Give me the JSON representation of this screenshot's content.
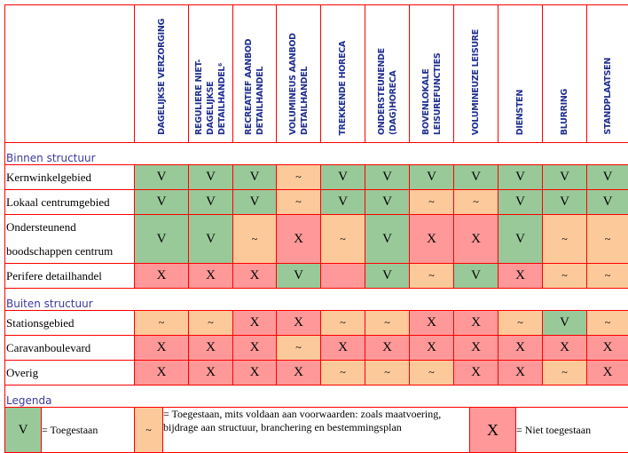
{
  "columns": [
    "DAGELIJKSE VERZORGING",
    "REGULIERE NIET-DAGELIJKSE DETAILHANDEL⁶",
    "RECREATIEF AANBOD DETAILHANDEL",
    "VOLUMINEUS AANBOD DETAILHANDEL",
    "TREKKENDE HORECA",
    "ONDERSTEUNENDE (DAG)HORECA",
    "BOVENLOKALE LEISUREFUNCTIES",
    "VOLUMINEUZE LEISURE",
    "DIENSTEN",
    "BLURRING",
    "STANDPLAATSEN"
  ],
  "colors": {
    "V": "#99c999",
    "~": "#fcc99b",
    "X": "#ff9999",
    "border": "#ff0000",
    "section": "#3a3aa0"
  },
  "sections": [
    {
      "title": "Binnen structuur",
      "rows": [
        {
          "label": "Kernwinkelgebied",
          "cells": [
            "V",
            "V",
            "V",
            "~",
            "V",
            "V",
            "V",
            "V",
            "V",
            "V",
            "V"
          ]
        },
        {
          "label": "Lokaal centrumgebied",
          "cells": [
            "V",
            "V",
            "V",
            "~",
            "V",
            "V",
            "~",
            "~",
            "V",
            "V",
            "V"
          ]
        },
        {
          "label": "Ondersteunend boodschappen centrum",
          "cells": [
            "V",
            "V",
            "~",
            "X",
            "~",
            "V",
            "X",
            "X",
            "V",
            "~",
            "~"
          ]
        },
        {
          "label": "Perifere detailhandel",
          "cells": [
            "X",
            "X",
            "X",
            "V",
            "",
            "V",
            "~",
            "V",
            "X",
            "~",
            "~"
          ]
        }
      ]
    },
    {
      "title": "Buiten structuur",
      "rows": [
        {
          "label": "Stationsgebied",
          "cells": [
            "~",
            "~",
            "X",
            "X",
            "~",
            "~",
            "X",
            "X",
            "~",
            "V",
            "~"
          ]
        },
        {
          "label": "Caravanboulevard",
          "cells": [
            "X",
            "X",
            "X",
            "~",
            "X",
            "X",
            "X",
            "X",
            "X",
            "X",
            "X"
          ]
        },
        {
          "label": "Overig",
          "cells": [
            "X",
            "X",
            "X",
            "X",
            "~",
            "~",
            "~",
            "X",
            "X",
            "~",
            "X"
          ]
        }
      ]
    }
  ],
  "legend": {
    "title": "Legenda",
    "items": [
      {
        "symbol": "V",
        "text": "= Toegestaan"
      },
      {
        "symbol": "~",
        "text": "= Toegestaan, mits voldaan aan voorwaarden: zoals maatvoering, bijdrage aan structuur, branchering en bestemmingsplan"
      },
      {
        "symbol": "X",
        "text": "= Niet toegestaan"
      }
    ]
  }
}
